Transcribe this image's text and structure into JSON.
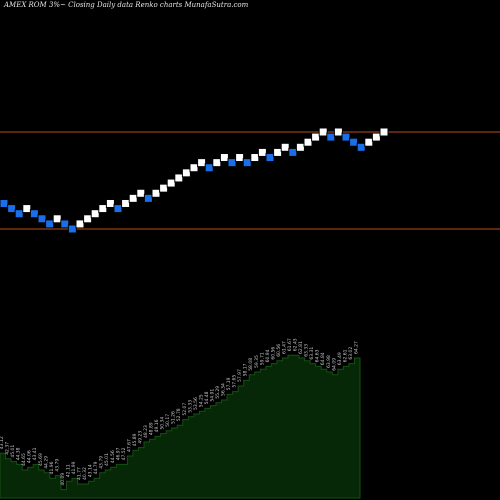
{
  "header_text": "AMEX  ROM 3%~  Closing Daily data  Renko  charts MunafaSutra.com",
  "colors": {
    "background": "#000000",
    "up_brick": "#ffffff",
    "down_brick": "#1a6fe8",
    "brick_border": "#000000",
    "ref_line": "#b4501e",
    "volume_fill": "#062806",
    "volume_outline": "#145014",
    "label_text": "#c8c8c8"
  },
  "chart_data": [
    {
      "type": "renko",
      "bricks": [
        {
          "y": 51.53,
          "d": "down"
        },
        {
          "y": 50.05,
          "d": "down"
        },
        {
          "y": 48.56,
          "d": "down"
        },
        {
          "y": 50.05,
          "d": "up"
        },
        {
          "y": 48.56,
          "d": "down"
        },
        {
          "y": 47.08,
          "d": "down"
        },
        {
          "y": 45.59,
          "d": "down"
        },
        {
          "y": 47.08,
          "d": "up"
        },
        {
          "y": 45.59,
          "d": "down"
        },
        {
          "y": 44.11,
          "d": "down"
        },
        {
          "y": 45.59,
          "d": "up"
        },
        {
          "y": 47.08,
          "d": "up"
        },
        {
          "y": 48.56,
          "d": "up"
        },
        {
          "y": 50.05,
          "d": "up"
        },
        {
          "y": 51.53,
          "d": "up"
        },
        {
          "y": 50.05,
          "d": "down"
        },
        {
          "y": 51.53,
          "d": "up"
        },
        {
          "y": 53.02,
          "d": "up"
        },
        {
          "y": 54.5,
          "d": "up"
        },
        {
          "y": 53.02,
          "d": "down"
        },
        {
          "y": 54.5,
          "d": "up"
        },
        {
          "y": 55.99,
          "d": "up"
        },
        {
          "y": 57.47,
          "d": "up"
        },
        {
          "y": 58.96,
          "d": "up"
        },
        {
          "y": 60.44,
          "d": "up"
        },
        {
          "y": 61.93,
          "d": "up"
        },
        {
          "y": 63.41,
          "d": "up"
        },
        {
          "y": 61.93,
          "d": "down"
        },
        {
          "y": 63.41,
          "d": "up"
        },
        {
          "y": 64.9,
          "d": "up"
        },
        {
          "y": 63.41,
          "d": "down"
        },
        {
          "y": 64.9,
          "d": "up"
        },
        {
          "y": 63.41,
          "d": "down"
        },
        {
          "y": 64.9,
          "d": "up"
        },
        {
          "y": 66.38,
          "d": "up"
        },
        {
          "y": 64.9,
          "d": "down"
        },
        {
          "y": 66.38,
          "d": "up"
        },
        {
          "y": 67.87,
          "d": "up"
        },
        {
          "y": 66.38,
          "d": "down"
        },
        {
          "y": 67.87,
          "d": "up"
        },
        {
          "y": 69.35,
          "d": "up"
        },
        {
          "y": 70.84,
          "d": "up"
        },
        {
          "y": 72.32,
          "d": "up"
        },
        {
          "y": 70.84,
          "d": "down"
        },
        {
          "y": 72.32,
          "d": "up"
        },
        {
          "y": 70.84,
          "d": "down"
        },
        {
          "y": 69.35,
          "d": "down"
        },
        {
          "y": 67.87,
          "d": "down"
        },
        {
          "y": 69.35,
          "d": "up"
        },
        {
          "y": 70.84,
          "d": "up"
        },
        {
          "y": 72.32,
          "d": "up"
        }
      ],
      "reference_lines": [
        72.32,
        44.11
      ],
      "volume_values": [
        32,
        28,
        26,
        24,
        20,
        22,
        24,
        20,
        18,
        14,
        16,
        6,
        12,
        14,
        10,
        10,
        12,
        14,
        18,
        20,
        22,
        24,
        24,
        30,
        34,
        36,
        40,
        42,
        44,
        46,
        48,
        50,
        52,
        56,
        58,
        60,
        62,
        64,
        66,
        68,
        70,
        74,
        76,
        80,
        84,
        88,
        90,
        92,
        94,
        96,
        98,
        100,
        102,
        102,
        100,
        98,
        96,
        94,
        92,
        90,
        88,
        92,
        94,
        96,
        100
      ],
      "volume_labels": [
        "43.12",
        "42.37",
        "45.01",
        "44.38",
        "44.65",
        "44.06",
        "43.41",
        "45.69",
        "44.29",
        "41.96",
        "43.79",
        "40.09",
        "42.11",
        "41.99",
        "41.77",
        "40.32",
        "43.14",
        "44.79",
        "43.79",
        "45.01",
        "44.56",
        "46.97",
        "47.52",
        "47.67",
        "45.89",
        "49.23",
        "48.23",
        "48.89",
        "49.16",
        "50.34",
        "50.17",
        "51.26",
        "52.78",
        "52.07",
        "53.33",
        "53.56",
        "54.25",
        "54.48",
        "54.91",
        "55.29",
        "56.34",
        "57.19",
        "57.65",
        "57.97",
        "58.17",
        "58.08",
        "59.35",
        "59.71",
        "60.94",
        "60.56",
        "60.56",
        "61.47",
        "61.67",
        "62.43",
        "62.81",
        "63.33",
        "63.31",
        "64.63",
        "64.84",
        "63.98",
        "64.09",
        "63.49",
        "62.61",
        "63.02",
        "64.27"
      ]
    }
  ]
}
